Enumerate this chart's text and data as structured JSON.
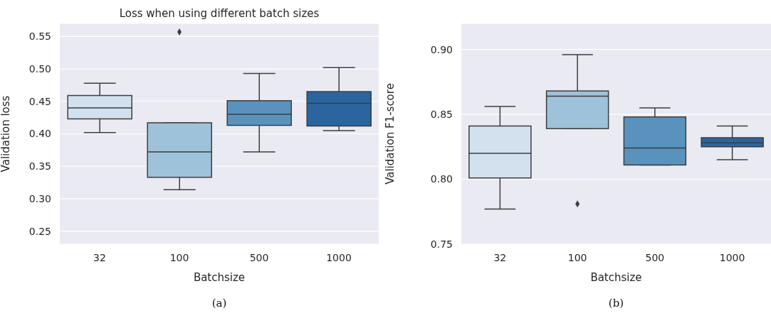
{
  "chart_data": [
    {
      "type": "box",
      "title": "Loss when using different batch sizes",
      "xlabel": "Batchsize",
      "ylabel": "Validation loss",
      "categories": [
        "32",
        "100",
        "500",
        "1000"
      ],
      "colors": [
        "#d3e1ef",
        "#9ec2d9",
        "#5993bd",
        "#2b65a0"
      ],
      "boxes": [
        {
          "low": 0.402,
          "q1": 0.423,
          "median": 0.44,
          "q3": 0.459,
          "high": 0.478
        },
        {
          "low": 0.314,
          "q1": 0.333,
          "median": 0.372,
          "q3": 0.417,
          "high": 0.417,
          "outliers": [
            0.557
          ]
        },
        {
          "low": 0.372,
          "q1": 0.413,
          "median": 0.43,
          "q3": 0.451,
          "high": 0.493
        },
        {
          "low": 0.405,
          "q1": 0.412,
          "median": 0.447,
          "q3": 0.465,
          "high": 0.502
        }
      ],
      "ylim": [
        0.23,
        0.57
      ],
      "yticks": [
        0.25,
        {
          "value": 0.3,
          "label": "0.30"
        },
        0.35,
        {
          "value": 0.4,
          "label": "0.40"
        },
        0.45,
        {
          "value": 0.5,
          "label": "0.50"
        },
        0.55
      ],
      "grid": "y",
      "annotations": [
        "(a)"
      ]
    },
    {
      "type": "box",
      "xlabel": "Batchsize",
      "ylabel": "Validation F1-score",
      "categories": [
        "32",
        "100",
        "500",
        "1000"
      ],
      "colors": [
        "#d3e1ef",
        "#9ec2d9",
        "#5993bd",
        "#2b65a0"
      ],
      "boxes": [
        {
          "low": 0.777,
          "q1": 0.801,
          "median": 0.82,
          "q3": 0.841,
          "high": 0.856
        },
        {
          "low": 0.839,
          "q1": 0.839,
          "median": 0.864,
          "q3": 0.868,
          "high": 0.896,
          "outliers": [
            0.781
          ]
        },
        {
          "low": 0.811,
          "q1": 0.811,
          "median": 0.824,
          "q3": 0.848,
          "high": 0.855
        },
        {
          "low": 0.815,
          "q1": 0.825,
          "median": 0.828,
          "q3": 0.832,
          "high": 0.841
        }
      ],
      "ylim": [
        0.75,
        0.92
      ],
      "yticks": [
        0.75,
        {
          "value": 0.8,
          "label": "0.80"
        },
        0.85,
        {
          "value": 0.9,
          "label": "0.90"
        }
      ],
      "grid": "y",
      "annotations": [
        "(b)"
      ]
    }
  ]
}
